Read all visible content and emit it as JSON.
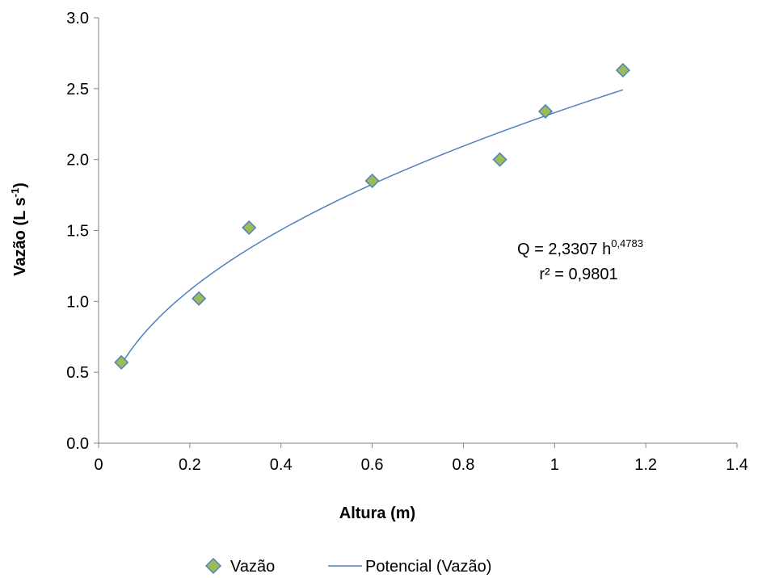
{
  "chart_data": {
    "type": "scatter",
    "xlabel": "Altura (m)",
    "ylabel_main": "Vazão (L s",
    "ylabel_sup": "-1",
    "ylabel_close": ")",
    "xlim": [
      0,
      1.4
    ],
    "ylim": [
      0.0,
      3.0
    ],
    "x_ticks": [
      0,
      0.2,
      0.4,
      0.6,
      0.8,
      1,
      1.2,
      1.4
    ],
    "x_tick_labels": [
      "0",
      "0.2",
      "0.4",
      "0.6",
      "0.8",
      "1",
      "1.2",
      "1.4"
    ],
    "y_ticks": [
      0.0,
      0.5,
      1.0,
      1.5,
      2.0,
      2.5,
      3.0
    ],
    "y_tick_labels": [
      "0.0",
      "0.5",
      "1.0",
      "1.5",
      "2.0",
      "2.5",
      "3.0"
    ],
    "grid": false,
    "series": [
      {
        "name": "Vazão",
        "kind": "scatter",
        "marker": "diamond",
        "color": "#9BBB59",
        "edge_color": "#4F81BD",
        "x": [
          0.05,
          0.22,
          0.33,
          0.6,
          0.88,
          0.98,
          1.15
        ],
        "y": [
          0.57,
          1.02,
          1.52,
          1.85,
          2.0,
          2.34,
          2.63
        ]
      },
      {
        "name": "Potencial (Vazão)",
        "kind": "trendline",
        "model": "power",
        "coefficient": 2.3307,
        "exponent": 0.4783,
        "x_range": [
          0.05,
          1.15
        ],
        "color": "#4F81BD"
      }
    ],
    "annotation": {
      "equation_base": "Q = 2,3307 h",
      "equation_exponent": "0,4783",
      "r_squared": "r² = 0,9801"
    },
    "legend_position": "bottom-center"
  }
}
